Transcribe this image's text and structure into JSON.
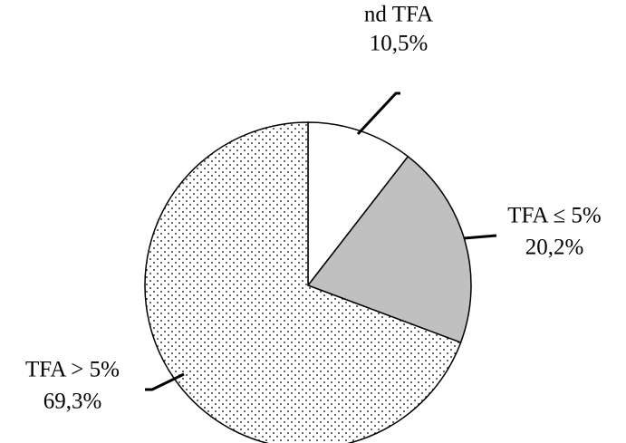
{
  "chart_data": {
    "type": "pie",
    "categories": [
      "nd TFA",
      "TFA ≤ 5%",
      "TFA > 5%"
    ],
    "values": [
      10.5,
      20.2,
      69.3
    ],
    "value_labels": [
      "10,5%",
      "20,2%",
      "69,3%"
    ],
    "colors": [
      "#ffffff",
      "#c0c0c0",
      "#ffffff"
    ],
    "patterns": [
      null,
      null,
      "dots"
    ]
  }
}
